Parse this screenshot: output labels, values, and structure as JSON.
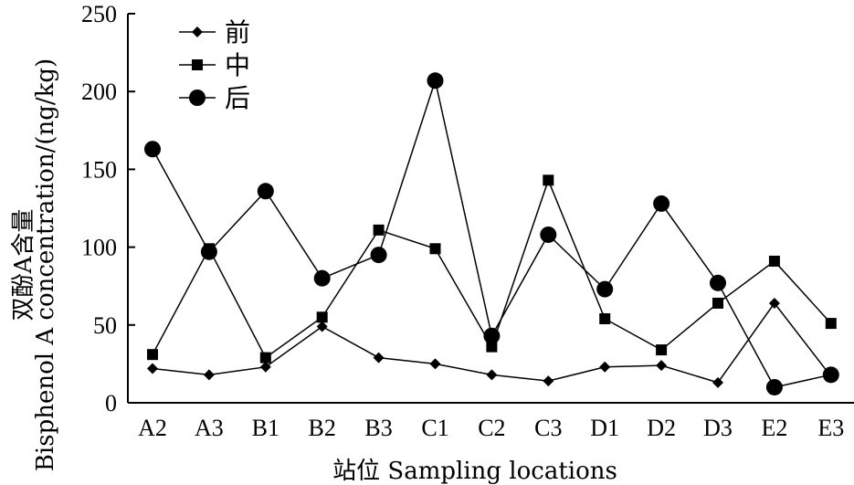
{
  "chart_data": {
    "type": "line",
    "xlabel": "站位 Sampling locations",
    "ylabel": "双酚A含量",
    "ylabel_en": "Bisphenol  A concentration/(ng/kg)",
    "categories": [
      "A2",
      "A3",
      "B1",
      "B2",
      "B3",
      "C1",
      "C2",
      "C3",
      "D1",
      "D2",
      "D3",
      "E2",
      "E3"
    ],
    "ylim": [
      0,
      250
    ],
    "yticks": [
      "0",
      "50",
      "100",
      "150",
      "200",
      "250"
    ],
    "legend_position": "top-left",
    "series": [
      {
        "name": "前",
        "marker": "diamond",
        "values": [
          22,
          18,
          23,
          49,
          29,
          25,
          18,
          14,
          23,
          24,
          13,
          64,
          17
        ]
      },
      {
        "name": "中",
        "marker": "square",
        "values": [
          31,
          99,
          29,
          55,
          111,
          99,
          36,
          143,
          54,
          34,
          64,
          91,
          51
        ]
      },
      {
        "name": "后",
        "marker": "circle",
        "values": [
          163,
          97,
          136,
          80,
          95,
          207,
          43,
          108,
          73,
          128,
          77,
          10,
          18
        ]
      }
    ],
    "colors": {
      "line": "#000000",
      "marker": "#000000"
    }
  }
}
